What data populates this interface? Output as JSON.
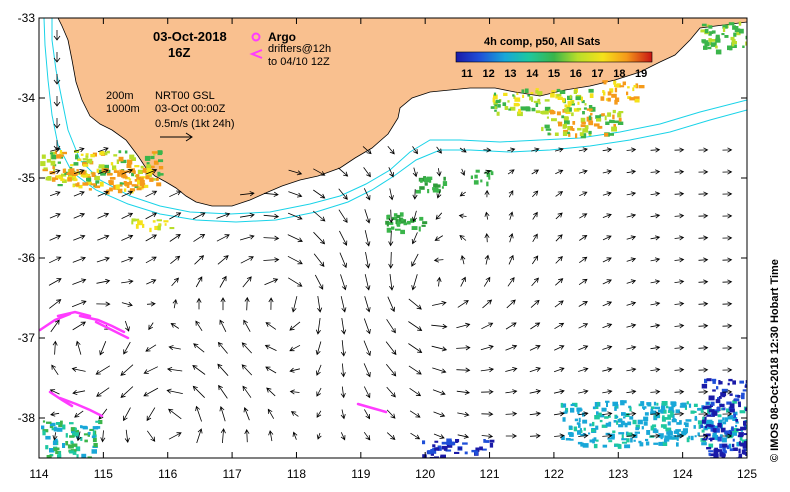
{
  "map": {
    "lon_range": [
      114,
      125
    ],
    "lat_range": [
      -38.5,
      -33
    ],
    "lon_ticks": [
      "114",
      "115",
      "116",
      "117",
      "118",
      "119",
      "120",
      "121",
      "122",
      "123",
      "124",
      "125"
    ],
    "lat_ticks": [
      "-33",
      "-34",
      "-35",
      "-36",
      "-37",
      "-38"
    ],
    "colors": {
      "land": "#f9c08f",
      "ocean": "#ffffff",
      "isobath": "#19d3e8",
      "argo": "#ff3cff",
      "drifters": "#ff3cff",
      "arrows": "#000000"
    }
  },
  "header": {
    "date": "03-Oct-2018",
    "hour": "16Z"
  },
  "legend": {
    "argo_label": "Argo",
    "drifters_label": "drifters@12h",
    "drifters_sub": "to 04/10 12Z"
  },
  "info": {
    "iso200": "200m",
    "iso1000": "1000m",
    "product": "NRT00 GSL",
    "time": "03-Oct 00:00Z",
    "scale": "0.5m/s (1kt 24h)"
  },
  "colorbar": {
    "title": "4h comp, p50, All Sats",
    "ticks": [
      "11",
      "12",
      "13",
      "14",
      "15",
      "16",
      "17",
      "18",
      "19"
    ],
    "min": 10.5,
    "max": 19.5
  },
  "footer": {
    "credit": "© IMOS 08-Oct-2018 12:30 Hobart Time"
  }
}
